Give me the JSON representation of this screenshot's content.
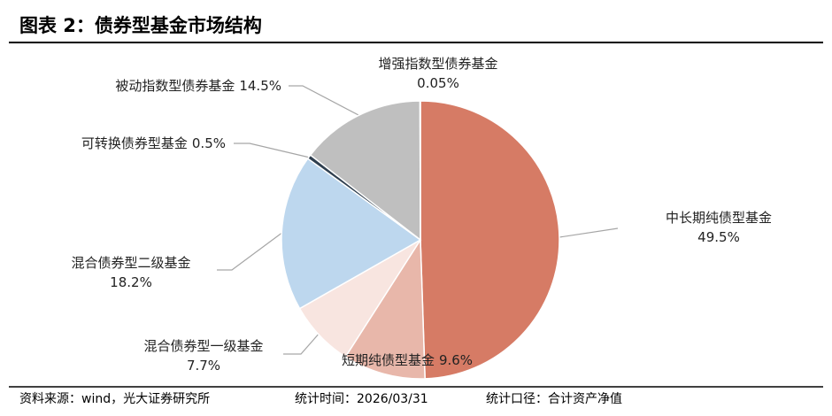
{
  "chart_data": {
    "type": "pie",
    "title": "图表 2：债券型基金市场结构",
    "categories": [
      "中长期纯债型基金",
      "短期纯债型基金",
      "混合债券型一级基金",
      "混合债券型二级基金",
      "可转换债券型基金",
      "被动指数型债券基金",
      "增强指数型债券基金"
    ],
    "values": [
      49.5,
      9.6,
      7.7,
      18.2,
      0.5,
      14.5,
      0.05
    ],
    "value_labels": [
      "49.5%",
      "9.6%",
      "7.7%",
      "18.2%",
      "0.5%",
      "14.5%",
      "0.05%"
    ],
    "colors": [
      "#d67b65",
      "#e8b7aa",
      "#f8e5e0",
      "#bdd7ee",
      "#2f3f4f",
      "#bfbfbf",
      "#d9d9d9"
    ],
    "footer": [
      "资料来源：wind，光大证券研究所",
      "统计时间：2026/03/31",
      "统计口径：合计资产净值"
    ]
  }
}
